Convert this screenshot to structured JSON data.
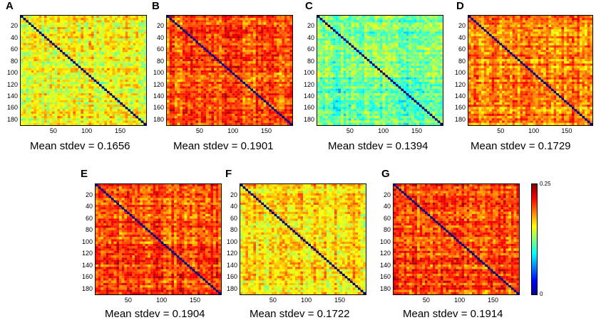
{
  "chart_data": [
    {
      "type": "heatmap",
      "panel": "A",
      "caption": "Mean stdev = 0.1656",
      "mean_stdev": 0.1656,
      "xticks": [
        "50",
        "100",
        "150"
      ],
      "yticks": [
        "20",
        "40",
        "60",
        "80",
        "100",
        "120",
        "140",
        "160",
        "180"
      ],
      "size": 190,
      "diagonal": 0,
      "clim": [
        0,
        0.25
      ]
    },
    {
      "type": "heatmap",
      "panel": "B",
      "caption": "Mean stdev = 0.1901",
      "mean_stdev": 0.1901,
      "xticks": [
        "50",
        "100",
        "150"
      ],
      "yticks": [
        "20",
        "40",
        "60",
        "80",
        "100",
        "120",
        "140",
        "160",
        "180"
      ],
      "size": 190,
      "diagonal": 0,
      "clim": [
        0,
        0.25
      ]
    },
    {
      "type": "heatmap",
      "panel": "C",
      "caption": "Mean stdev = 0.1394",
      "mean_stdev": 0.1394,
      "xticks": [
        "50",
        "100",
        "150"
      ],
      "yticks": [
        "20",
        "40",
        "60",
        "80",
        "100",
        "120",
        "140",
        "160",
        "180"
      ],
      "size": 190,
      "diagonal": 0,
      "clim": [
        0,
        0.25
      ]
    },
    {
      "type": "heatmap",
      "panel": "D",
      "caption": "Mean stdev = 0.1729",
      "mean_stdev": 0.1729,
      "xticks": [
        "50",
        "100",
        "150"
      ],
      "yticks": [
        "20",
        "40",
        "60",
        "80",
        "100",
        "120",
        "140",
        "160",
        "180"
      ],
      "size": 190,
      "diagonal": 0,
      "clim": [
        0,
        0.25
      ]
    },
    {
      "type": "heatmap",
      "panel": "E",
      "caption": "Mean stdev = 0.1904",
      "mean_stdev": 0.1904,
      "xticks": [
        "50",
        "100",
        "150"
      ],
      "yticks": [
        "20",
        "40",
        "60",
        "80",
        "100",
        "120",
        "140",
        "160",
        "180"
      ],
      "size": 190,
      "diagonal": 0,
      "clim": [
        0,
        0.25
      ]
    },
    {
      "type": "heatmap",
      "panel": "F",
      "caption": "Mean stdev = 0.1722",
      "mean_stdev": 0.1722,
      "xticks": [
        "50",
        "100",
        "150"
      ],
      "yticks": [
        "20",
        "40",
        "60",
        "80",
        "100",
        "120",
        "140",
        "160",
        "180"
      ],
      "size": 190,
      "diagonal": 0,
      "clim": [
        0,
        0.25
      ]
    },
    {
      "type": "heatmap",
      "panel": "G",
      "caption": "Mean stdev = 0.1914",
      "mean_stdev": 0.1914,
      "xticks": [
        "50",
        "100",
        "150"
      ],
      "yticks": [
        "20",
        "40",
        "60",
        "80",
        "100",
        "120",
        "140",
        "160",
        "180"
      ],
      "size": 190,
      "diagonal": 0,
      "clim": [
        0,
        0.25
      ]
    }
  ],
  "colorbar": {
    "min_label": "0",
    "max_label": "0.25",
    "colormap": "jet"
  }
}
